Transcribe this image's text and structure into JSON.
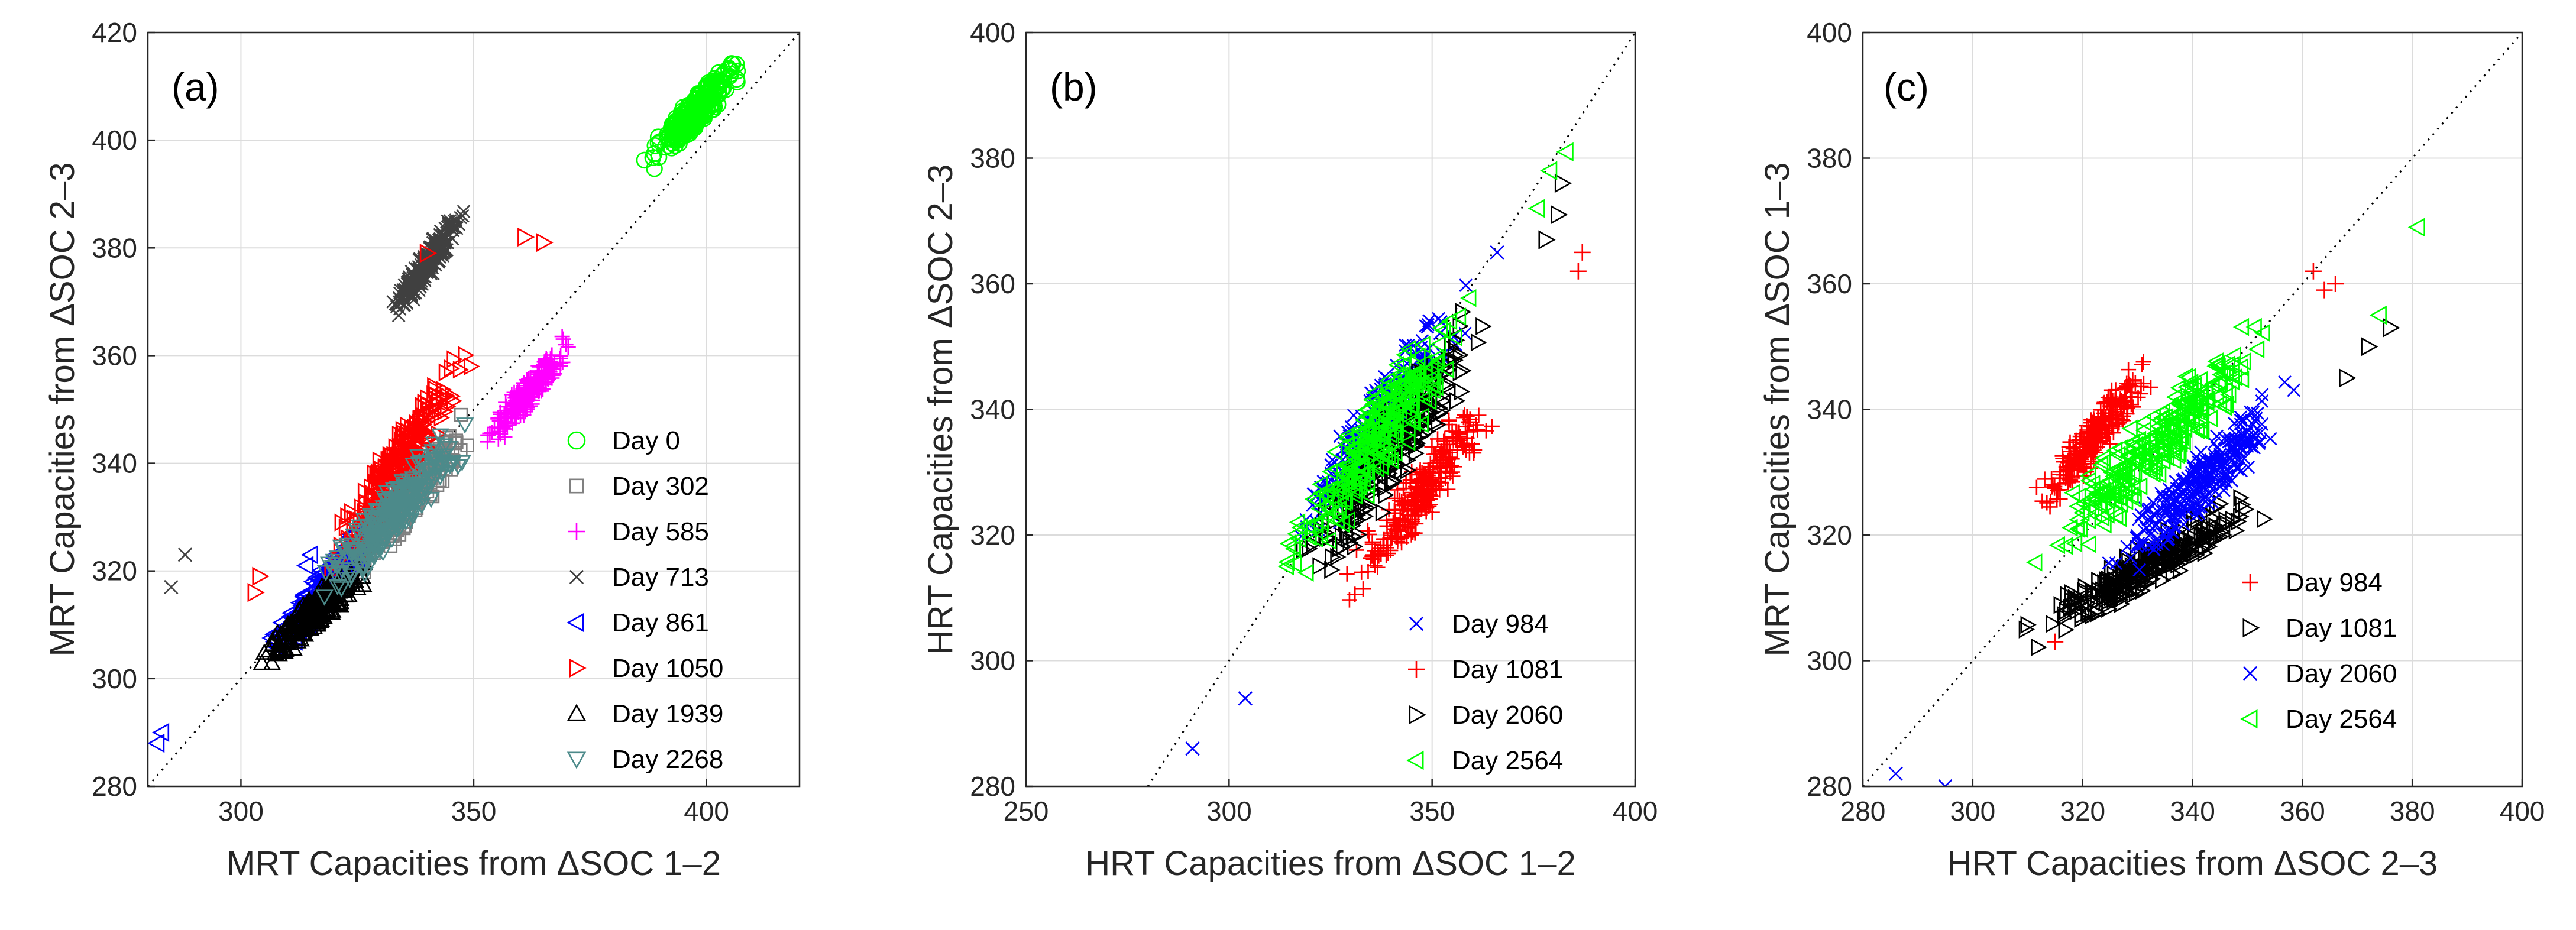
{
  "chart_data": [
    {
      "type": "scatter",
      "panel_label": "(a)",
      "xlabel": "MRT Capacities from ΔSOC 1–2",
      "ylabel": "MRT Capacities from ΔSOC 2–3",
      "xlim": [
        280,
        420
      ],
      "ylim": [
        280,
        420
      ],
      "xticks": [
        300,
        350,
        400
      ],
      "yticks": [
        280,
        300,
        320,
        340,
        360,
        380,
        400,
        420
      ],
      "grid": true,
      "identity_line": true,
      "legend_position": "lower-right",
      "series": [
        {
          "name": "Day 0",
          "marker": "circle",
          "color": "#00ff00",
          "cloud": {
            "x": [
              386,
              409
            ],
            "y": [
              394,
              416
            ]
          }
        },
        {
          "name": "Day 302",
          "marker": "square",
          "color": "#808080",
          "cloud": {
            "x": [
              316,
              352
            ],
            "y": [
              314,
              350
            ]
          }
        },
        {
          "name": "Day 585",
          "marker": "plus",
          "color": "#ff00ff",
          "cloud": {
            "x": [
              351,
              372
            ],
            "y": [
              342,
              364
            ]
          }
        },
        {
          "name": "Day 713",
          "marker": "x",
          "color": "#404040",
          "cloud": {
            "x": [
              331,
              349
            ],
            "y": [
              366,
              388
            ]
          },
          "outliers": [
            [
              285,
              317
            ],
            [
              288,
              323
            ]
          ]
        },
        {
          "name": "Day 861",
          "marker": "triangle-left",
          "color": "#0000ff",
          "cloud": {
            "x": [
              305,
              330
            ],
            "y": [
              303,
              330
            ]
          },
          "outliers": [
            [
              282,
              288
            ],
            [
              283,
              290
            ],
            [
              314,
              321
            ],
            [
              315,
              323
            ]
          ]
        },
        {
          "name": "Day 1050",
          "marker": "triangle-right",
          "color": "#ff0000",
          "cloud": {
            "x": [
              318,
              350
            ],
            "y": [
              318,
              362
            ]
          },
          "outliers": [
            [
              303,
              316
            ],
            [
              304,
              319
            ],
            [
              361,
              382
            ],
            [
              365,
              381
            ],
            [
              340,
              379
            ]
          ]
        },
        {
          "name": "Day 1939",
          "marker": "triangle-up",
          "color": "#000000",
          "cloud": {
            "x": [
              302,
              330
            ],
            "y": [
              301,
              324
            ]
          }
        },
        {
          "name": "Day 2268",
          "marker": "triangle-down",
          "color": "#4c8a8a",
          "cloud": {
            "x": [
              314,
              352
            ],
            "y": [
              312,
              350
            ]
          }
        }
      ]
    },
    {
      "type": "scatter",
      "panel_label": "(b)",
      "xlabel": "HRT Capacities from ΔSOC 1–2",
      "ylabel": "HRT Capacities from ΔSOC 2–3",
      "xlim": [
        250,
        400
      ],
      "ylim": [
        280,
        400
      ],
      "xticks": [
        250,
        300,
        350,
        400
      ],
      "yticks": [
        280,
        300,
        320,
        340,
        360,
        380,
        400
      ],
      "grid": true,
      "identity_line": true,
      "legend_position": "lower-right",
      "series": [
        {
          "name": "Day 984",
          "marker": "x",
          "color": "#0000ff",
          "cloud": {
            "x": [
              312,
              362
            ],
            "y": [
              314,
              362
            ]
          },
          "outliers": [
            [
              291,
              286
            ],
            [
              304,
              294
            ],
            [
              366,
              365
            ]
          ]
        },
        {
          "name": "Day 1081",
          "marker": "plus",
          "color": "#ff0000",
          "cloud": {
            "x": [
              326,
              368
            ],
            "y": [
              308,
              345
            ]
          },
          "outliers": [
            [
              386,
              362
            ],
            [
              387,
              365
            ]
          ]
        },
        {
          "name": "Day 2060",
          "marker": "triangle-right",
          "color": "#000000",
          "cloud": {
            "x": [
              313,
              367
            ],
            "y": [
              308,
              359
            ]
          },
          "outliers": [
            [
              378,
              367
            ],
            [
              381,
              371
            ],
            [
              382,
              376
            ]
          ]
        },
        {
          "name": "Day 2564",
          "marker": "triangle-left",
          "color": "#00ff00",
          "cloud": {
            "x": [
              309,
              363
            ],
            "y": [
              310,
              360
            ]
          },
          "outliers": [
            [
              376,
              372
            ],
            [
              379,
              378
            ],
            [
              383,
              381
            ]
          ]
        }
      ]
    },
    {
      "type": "scatter",
      "panel_label": "(c)",
      "xlabel": "HRT Capacities from ΔSOC 2–3",
      "ylabel": "MRT Capacities from ΔSOC 1–3",
      "xlim": [
        280,
        400
      ],
      "ylim": [
        280,
        400
      ],
      "xticks": [
        280,
        300,
        320,
        340,
        360,
        380,
        400
      ],
      "yticks": [
        280,
        300,
        320,
        340,
        360,
        380,
        400
      ],
      "grid": true,
      "identity_line": true,
      "legend_position": "lower-right",
      "series": [
        {
          "name": "Day 984",
          "marker": "plus",
          "color": "#ff0000",
          "cloud": {
            "x": [
              310,
              335
            ],
            "y": [
              322,
              350
            ]
          },
          "outliers": [
            [
              362,
              362
            ],
            [
              364,
              359
            ],
            [
              366,
              360
            ],
            [
              315,
              303
            ]
          ]
        },
        {
          "name": "Day 1081",
          "marker": "triangle-right",
          "color": "#000000",
          "cloud": {
            "x": [
              308,
              356
            ],
            "y": [
              302,
              328
            ]
          },
          "outliers": [
            [
              368,
              345
            ],
            [
              372,
              350
            ],
            [
              376,
              353
            ]
          ]
        },
        {
          "name": "Day 2060",
          "marker": "x",
          "color": "#0000ff",
          "cloud": {
            "x": [
              322,
              362
            ],
            "y": [
              312,
              346
            ]
          },
          "outliers": [
            [
              286,
              282
            ],
            [
              295,
              280
            ]
          ]
        },
        {
          "name": "Day 2564",
          "marker": "triangle-left",
          "color": "#00ff00",
          "cloud": {
            "x": [
              310,
              358
            ],
            "y": [
              314,
              356
            ]
          },
          "outliers": [
            [
              374,
              355
            ],
            [
              381,
              369
            ]
          ]
        }
      ]
    }
  ]
}
